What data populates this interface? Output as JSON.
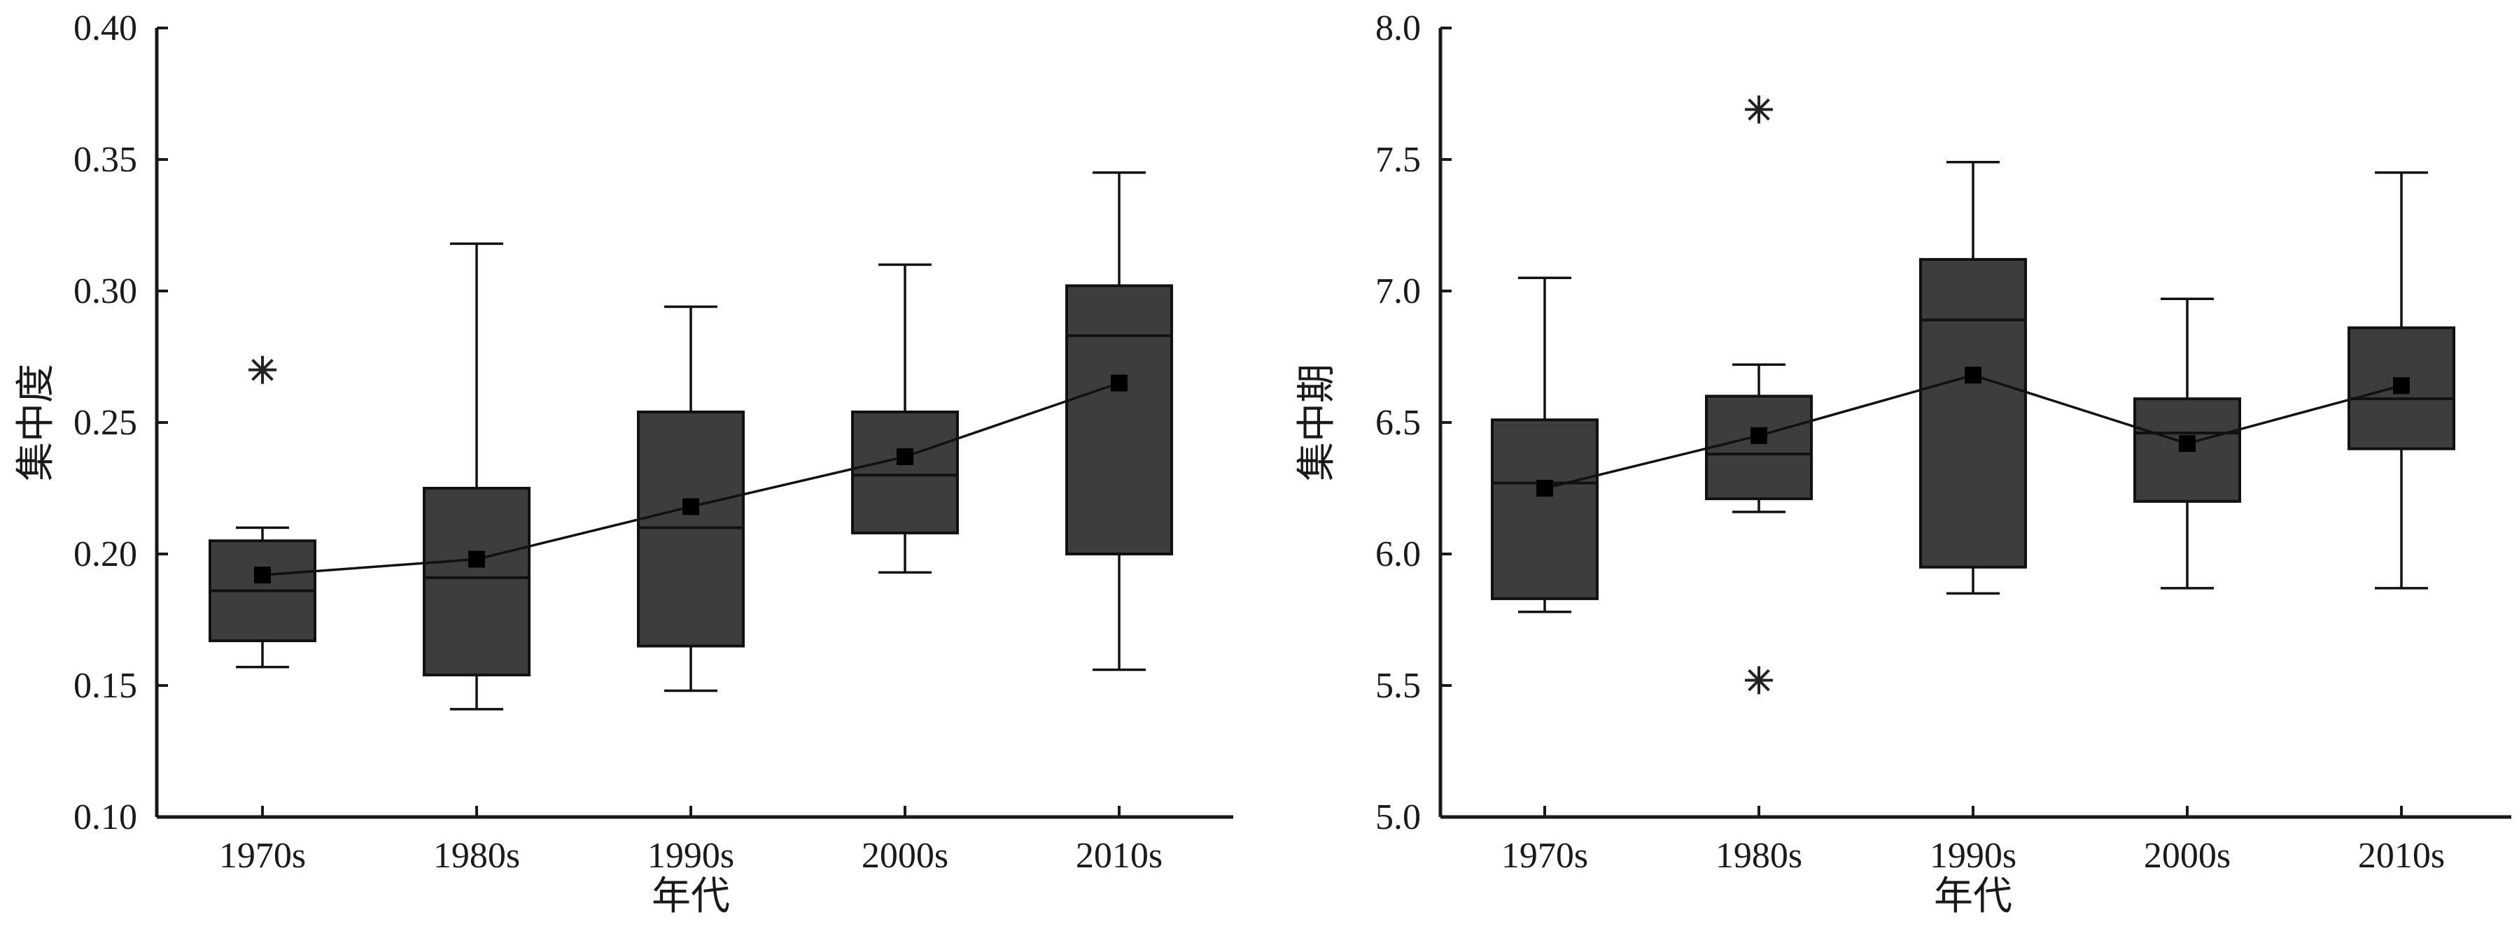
{
  "chart_data": [
    {
      "type": "box",
      "ylabel": "集中度",
      "xlabel": "年代",
      "categories": [
        "1970s",
        "1980s",
        "1990s",
        "2000s",
        "2010s"
      ],
      "ylim": [
        0.1,
        0.4
      ],
      "yticks": [
        "0.10",
        "0.15",
        "0.20",
        "0.25",
        "0.30",
        "0.35",
        "0.40"
      ],
      "boxes": [
        {
          "whisker_low": 0.157,
          "q1": 0.167,
          "median": 0.186,
          "q3": 0.205,
          "whisker_high": 0.21,
          "mean": 0.192,
          "outliers": [
            0.27
          ]
        },
        {
          "whisker_low": 0.141,
          "q1": 0.154,
          "median": 0.191,
          "q3": 0.225,
          "whisker_high": 0.318,
          "mean": 0.198,
          "outliers": []
        },
        {
          "whisker_low": 0.148,
          "q1": 0.165,
          "median": 0.21,
          "q3": 0.254,
          "whisker_high": 0.294,
          "mean": 0.218,
          "outliers": []
        },
        {
          "whisker_low": 0.193,
          "q1": 0.208,
          "median": 0.23,
          "q3": 0.254,
          "whisker_high": 0.31,
          "mean": 0.237,
          "outliers": []
        },
        {
          "whisker_low": 0.156,
          "q1": 0.2,
          "median": 0.283,
          "q3": 0.302,
          "whisker_high": 0.345,
          "mean": 0.265,
          "outliers": []
        }
      ]
    },
    {
      "type": "box",
      "ylabel": "集中期",
      "xlabel": "年代",
      "categories": [
        "1970s",
        "1980s",
        "1990s",
        "2000s",
        "2010s"
      ],
      "ylim": [
        5.0,
        8.0
      ],
      "yticks": [
        "5.0",
        "5.5",
        "6.0",
        "6.5",
        "7.0",
        "7.5",
        "8.0"
      ],
      "boxes": [
        {
          "whisker_low": 5.78,
          "q1": 5.83,
          "median": 6.27,
          "q3": 6.51,
          "whisker_high": 7.05,
          "mean": 6.25,
          "outliers": []
        },
        {
          "whisker_low": 6.16,
          "q1": 6.21,
          "median": 6.38,
          "q3": 6.6,
          "whisker_high": 6.72,
          "mean": 6.45,
          "outliers": [
            7.69,
            5.52
          ]
        },
        {
          "whisker_low": 5.85,
          "q1": 5.95,
          "median": 6.89,
          "q3": 7.12,
          "whisker_high": 7.49,
          "mean": 6.68,
          "outliers": []
        },
        {
          "whisker_low": 5.87,
          "q1": 6.2,
          "median": 6.46,
          "q3": 6.59,
          "whisker_high": 6.97,
          "mean": 6.42,
          "outliers": []
        },
        {
          "whisker_low": 5.87,
          "q1": 6.4,
          "median": 6.59,
          "q3": 6.86,
          "whisker_high": 7.45,
          "mean": 6.64,
          "outliers": []
        }
      ]
    }
  ]
}
